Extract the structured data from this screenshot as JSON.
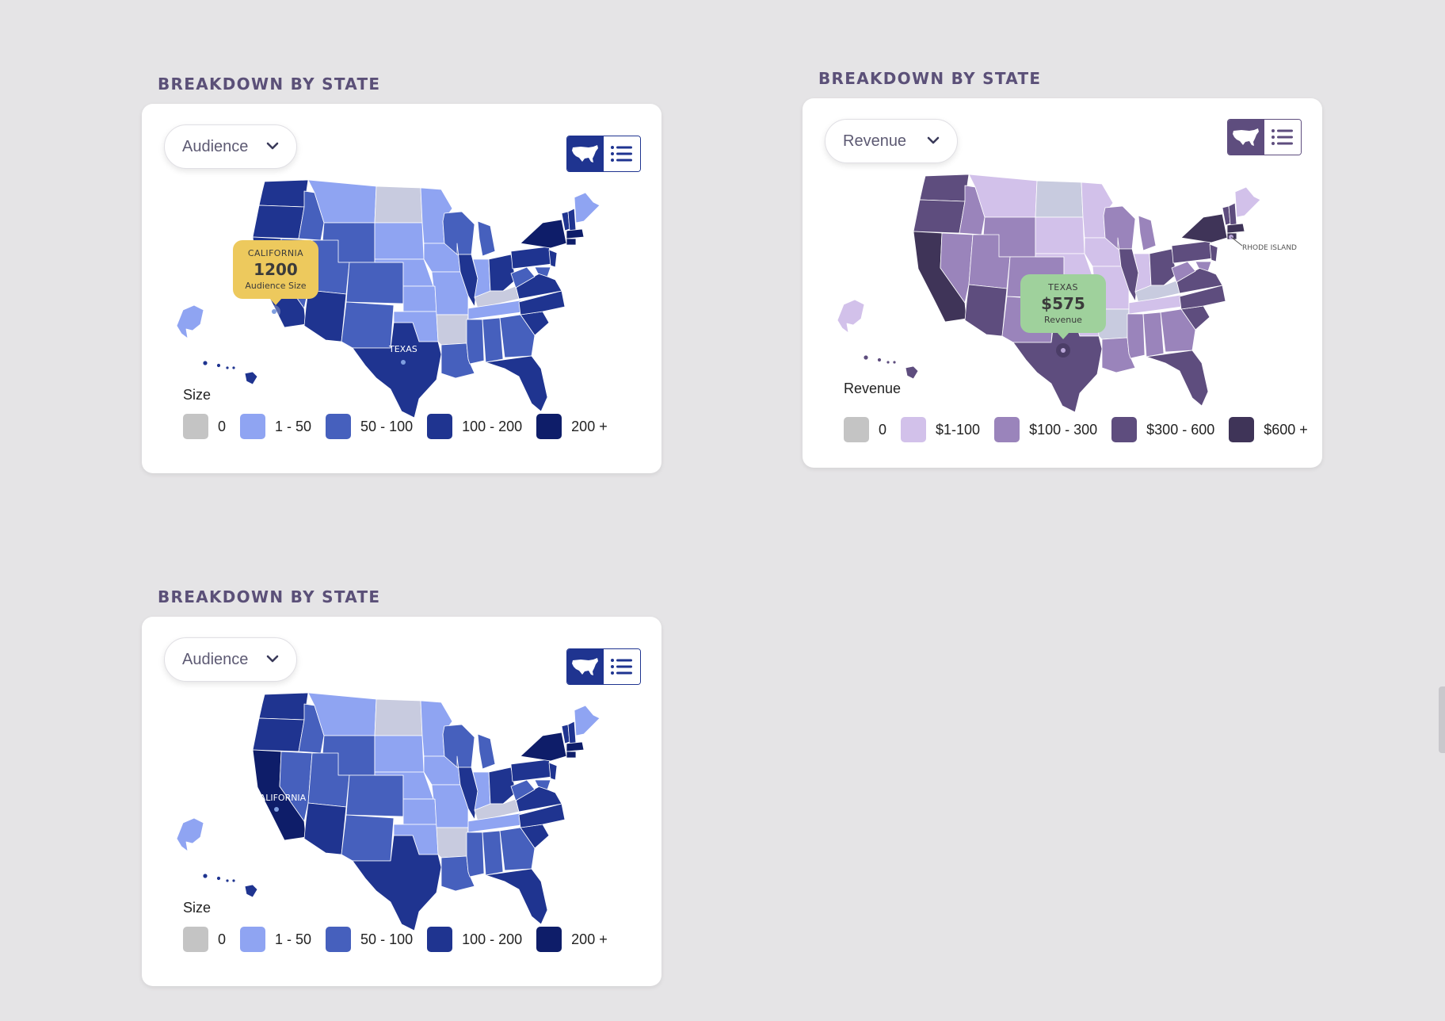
{
  "panels": [
    {
      "title": "BREAKDOWN BY STATE",
      "dropdown_value": "Audience",
      "toggle": {
        "map_view": "map-view",
        "list_view": "list-view",
        "active": "map"
      },
      "legend_title": "Size",
      "legend": [
        {
          "label": "0",
          "color": "#c4c4c4"
        },
        {
          "label": "1 - 50",
          "color": "#8fa4f2"
        },
        {
          "label": "50 - 100",
          "color": "#4660bd"
        },
        {
          "label": "100 - 200",
          "color": "#1f3490"
        },
        {
          "label": "200 +",
          "color": "#0e1d69"
        }
      ],
      "tooltip": {
        "state": "CALIFORNIA",
        "value": "1200",
        "caption": "Audience Size",
        "color": "#edc95d"
      },
      "state_labels": [
        "TEXAS"
      ],
      "theme": {
        "accent": "#1f3490"
      }
    },
    {
      "title": "BREAKDOWN BY STATE",
      "dropdown_value": "Revenue",
      "toggle": {
        "map_view": "map-view",
        "list_view": "list-view",
        "active": "map"
      },
      "legend_title": "Revenue",
      "legend": [
        {
          "label": "0",
          "color": "#c4c4c4"
        },
        {
          "label": "$1-100",
          "color": "#d2c1ea"
        },
        {
          "label": "$100 - 300",
          "color": "#9a84bb"
        },
        {
          "label": "$300 - 600",
          "color": "#5e4d7e"
        },
        {
          "label": "$600 +",
          "color": "#3f3458"
        }
      ],
      "tooltip": {
        "state": "TEXAS",
        "value": "$575",
        "caption": "Revenue",
        "color": "#9fd19c"
      },
      "state_labels": [
        "RHODE ISLAND"
      ],
      "theme": {
        "accent": "#5e4d7e"
      }
    },
    {
      "title": "BREAKDOWN BY STATE",
      "dropdown_value": "Audience",
      "toggle": {
        "map_view": "map-view",
        "list_view": "list-view",
        "active": "map"
      },
      "legend_title": "Size",
      "legend": [
        {
          "label": "0",
          "color": "#c4c4c4"
        },
        {
          "label": "1 - 50",
          "color": "#8fa4f2"
        },
        {
          "label": "50 - 100",
          "color": "#4660bd"
        },
        {
          "label": "100 - 200",
          "color": "#1f3490"
        },
        {
          "label": "200 +",
          "color": "#0e1d69"
        }
      ],
      "state_labels": [
        "CALIFORNIA"
      ],
      "theme": {
        "accent": "#1f3490"
      }
    }
  ]
}
